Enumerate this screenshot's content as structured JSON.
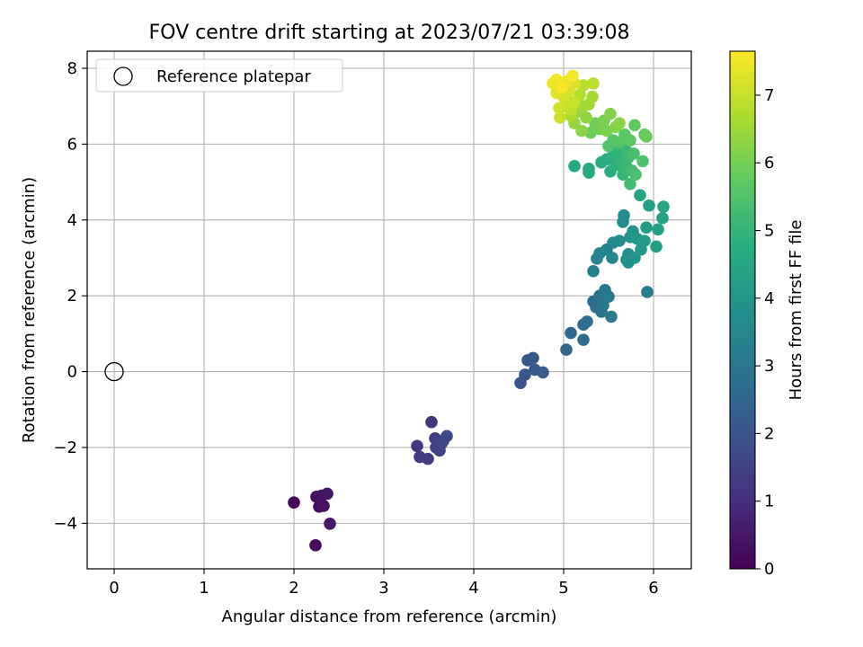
{
  "chart_data": {
    "type": "scatter",
    "title": "FOV centre drift starting at 2023/07/21 03:39:08",
    "xlabel": "Angular distance from reference (arcmin)",
    "ylabel": "Rotation from reference (arcmin)",
    "xlim": [
      -0.3,
      6.42
    ],
    "ylim": [
      -5.2,
      8.45
    ],
    "xticks": [
      0,
      1,
      2,
      3,
      4,
      5,
      6
    ],
    "yticks": [
      -4,
      -2,
      0,
      2,
      4,
      6,
      8
    ],
    "xticklabels": [
      "0",
      "1",
      "2",
      "3",
      "4",
      "5",
      "6"
    ],
    "yticklabels": [
      "−4",
      "−2",
      "0",
      "2",
      "4",
      "6",
      "8"
    ],
    "grid": true,
    "legend": {
      "placement": "upper-left",
      "entries": [
        {
          "label": "Reference platepar",
          "marker": "open-circle"
        }
      ]
    },
    "reference_point": {
      "x": 0,
      "y": 0
    },
    "colormap": "viridis",
    "colorbar": {
      "label": "Hours from first FF file",
      "range": [
        0,
        7.65
      ],
      "ticks": [
        0,
        1,
        2,
        3,
        4,
        5,
        6,
        7
      ],
      "ticklabels": [
        "0",
        "1",
        "2",
        "3",
        "4",
        "5",
        "6",
        "7"
      ]
    },
    "points": [
      {
        "x": 2.0,
        "y": -3.45,
        "c": 0.1
      },
      {
        "x": 2.24,
        "y": -4.58,
        "c": 0.2
      },
      {
        "x": 2.25,
        "y": -3.3,
        "c": 0.25
      },
      {
        "x": 2.28,
        "y": -3.56,
        "c": 0.3
      },
      {
        "x": 2.33,
        "y": -3.54,
        "c": 0.35
      },
      {
        "x": 2.31,
        "y": -3.27,
        "c": 0.4
      },
      {
        "x": 2.37,
        "y": -3.22,
        "c": 0.45
      },
      {
        "x": 2.4,
        "y": -4.01,
        "c": 0.5
      },
      {
        "x": 3.53,
        "y": -1.33,
        "c": 1.2
      },
      {
        "x": 3.37,
        "y": -1.96,
        "c": 1.25
      },
      {
        "x": 3.4,
        "y": -2.25,
        "c": 1.3
      },
      {
        "x": 3.49,
        "y": -2.3,
        "c": 1.35
      },
      {
        "x": 3.57,
        "y": -1.76,
        "c": 1.4
      },
      {
        "x": 3.58,
        "y": -2.0,
        "c": 1.45
      },
      {
        "x": 3.62,
        "y": -2.08,
        "c": 1.5
      },
      {
        "x": 3.64,
        "y": -1.9,
        "c": 1.55
      },
      {
        "x": 3.66,
        "y": -1.83,
        "c": 1.6
      },
      {
        "x": 3.7,
        "y": -1.7,
        "c": 1.62
      },
      {
        "x": 4.52,
        "y": -0.3,
        "c": 2.0
      },
      {
        "x": 4.57,
        "y": -0.08,
        "c": 2.05
      },
      {
        "x": 4.6,
        "y": 0.3,
        "c": 2.1
      },
      {
        "x": 4.66,
        "y": 0.36,
        "c": 2.15
      },
      {
        "x": 4.68,
        "y": 0.05,
        "c": 2.2
      },
      {
        "x": 4.77,
        "y": -0.02,
        "c": 2.25
      },
      {
        "x": 5.03,
        "y": 0.58,
        "c": 2.55
      },
      {
        "x": 5.08,
        "y": 1.02,
        "c": 2.6
      },
      {
        "x": 5.22,
        "y": 0.84,
        "c": 2.65
      },
      {
        "x": 5.22,
        "y": 1.24,
        "c": 2.7
      },
      {
        "x": 5.26,
        "y": 1.32,
        "c": 2.75
      },
      {
        "x": 5.33,
        "y": 1.85,
        "c": 2.8
      },
      {
        "x": 5.36,
        "y": 1.7,
        "c": 2.85
      },
      {
        "x": 5.4,
        "y": 2.0,
        "c": 2.9
      },
      {
        "x": 5.42,
        "y": 1.58,
        "c": 2.95
      },
      {
        "x": 5.44,
        "y": 1.75,
        "c": 3.0
      },
      {
        "x": 5.46,
        "y": 2.15,
        "c": 3.05
      },
      {
        "x": 5.5,
        "y": 1.98,
        "c": 3.1
      },
      {
        "x": 5.53,
        "y": 1.45,
        "c": 3.15
      },
      {
        "x": 5.93,
        "y": 2.1,
        "c": 3.2
      },
      {
        "x": 5.33,
        "y": 2.65,
        "c": 3.3
      },
      {
        "x": 5.37,
        "y": 2.98,
        "c": 3.35
      },
      {
        "x": 5.4,
        "y": 3.12,
        "c": 3.4
      },
      {
        "x": 5.48,
        "y": 3.22,
        "c": 3.45
      },
      {
        "x": 5.54,
        "y": 3.0,
        "c": 3.5
      },
      {
        "x": 5.55,
        "y": 3.4,
        "c": 3.55
      },
      {
        "x": 5.62,
        "y": 3.45,
        "c": 3.6
      },
      {
        "x": 5.66,
        "y": 3.95,
        "c": 3.65
      },
      {
        "x": 5.67,
        "y": 4.12,
        "c": 3.7
      },
      {
        "x": 5.7,
        "y": 2.95,
        "c": 3.75
      },
      {
        "x": 5.72,
        "y": 3.1,
        "c": 3.8
      },
      {
        "x": 5.72,
        "y": 2.88,
        "c": 3.85
      },
      {
        "x": 5.74,
        "y": 3.55,
        "c": 3.9
      },
      {
        "x": 5.77,
        "y": 3.7,
        "c": 3.95
      },
      {
        "x": 5.79,
        "y": 3.0,
        "c": 4.0
      },
      {
        "x": 5.82,
        "y": 3.5,
        "c": 4.05
      },
      {
        "x": 5.86,
        "y": 3.22,
        "c": 4.1
      },
      {
        "x": 5.9,
        "y": 3.45,
        "c": 4.15
      },
      {
        "x": 5.92,
        "y": 3.8,
        "c": 4.2
      },
      {
        "x": 5.95,
        "y": 4.38,
        "c": 4.25
      },
      {
        "x": 6.03,
        "y": 3.3,
        "c": 4.3
      },
      {
        "x": 6.05,
        "y": 3.75,
        "c": 4.35
      },
      {
        "x": 6.1,
        "y": 4.05,
        "c": 4.4
      },
      {
        "x": 6.11,
        "y": 4.35,
        "c": 4.45
      },
      {
        "x": 5.85,
        "y": 4.65,
        "c": 4.5
      },
      {
        "x": 5.12,
        "y": 5.42,
        "c": 4.55
      },
      {
        "x": 5.28,
        "y": 5.25,
        "c": 4.6
      },
      {
        "x": 5.28,
        "y": 5.35,
        "c": 4.65
      },
      {
        "x": 5.42,
        "y": 5.52,
        "c": 4.7
      },
      {
        "x": 5.48,
        "y": 5.6,
        "c": 4.75
      },
      {
        "x": 5.52,
        "y": 5.28,
        "c": 4.8
      },
      {
        "x": 5.55,
        "y": 5.7,
        "c": 4.85
      },
      {
        "x": 5.58,
        "y": 5.45,
        "c": 4.9
      },
      {
        "x": 5.6,
        "y": 5.8,
        "c": 4.95
      },
      {
        "x": 5.63,
        "y": 5.55,
        "c": 5.0
      },
      {
        "x": 5.66,
        "y": 5.2,
        "c": 5.05
      },
      {
        "x": 5.68,
        "y": 5.9,
        "c": 5.1
      },
      {
        "x": 5.7,
        "y": 5.4,
        "c": 5.15
      },
      {
        "x": 5.72,
        "y": 5.65,
        "c": 5.2
      },
      {
        "x": 5.74,
        "y": 4.95,
        "c": 5.25
      },
      {
        "x": 5.76,
        "y": 5.3,
        "c": 5.3
      },
      {
        "x": 5.78,
        "y": 5.75,
        "c": 5.35
      },
      {
        "x": 5.8,
        "y": 5.2,
        "c": 5.4
      },
      {
        "x": 5.88,
        "y": 5.55,
        "c": 5.45
      },
      {
        "x": 5.5,
        "y": 5.95,
        "c": 5.5
      },
      {
        "x": 5.55,
        "y": 6.1,
        "c": 5.55
      },
      {
        "x": 5.62,
        "y": 6.05,
        "c": 5.6
      },
      {
        "x": 5.68,
        "y": 6.25,
        "c": 5.65
      },
      {
        "x": 5.74,
        "y": 6.1,
        "c": 5.7
      },
      {
        "x": 5.79,
        "y": 6.5,
        "c": 5.75
      },
      {
        "x": 5.9,
        "y": 6.25,
        "c": 5.8
      },
      {
        "x": 5.92,
        "y": 6.2,
        "c": 5.85
      },
      {
        "x": 5.3,
        "y": 6.3,
        "c": 5.9
      },
      {
        "x": 5.35,
        "y": 6.55,
        "c": 5.95
      },
      {
        "x": 5.4,
        "y": 6.4,
        "c": 6.0
      },
      {
        "x": 5.45,
        "y": 6.62,
        "c": 6.05
      },
      {
        "x": 5.48,
        "y": 6.35,
        "c": 6.1
      },
      {
        "x": 5.52,
        "y": 6.8,
        "c": 6.15
      },
      {
        "x": 5.58,
        "y": 6.45,
        "c": 6.2
      },
      {
        "x": 5.62,
        "y": 6.55,
        "c": 6.25
      },
      {
        "x": 5.2,
        "y": 6.35,
        "c": 6.3
      },
      {
        "x": 5.25,
        "y": 6.7,
        "c": 6.35
      },
      {
        "x": 5.12,
        "y": 6.55,
        "c": 6.4
      },
      {
        "x": 5.15,
        "y": 6.85,
        "c": 6.45
      },
      {
        "x": 5.22,
        "y": 7.0,
        "c": 6.5
      },
      {
        "x": 5.28,
        "y": 7.05,
        "c": 6.55
      },
      {
        "x": 5.32,
        "y": 7.25,
        "c": 6.6
      },
      {
        "x": 5.08,
        "y": 6.75,
        "c": 6.65
      },
      {
        "x": 5.05,
        "y": 7.15,
        "c": 6.7
      },
      {
        "x": 5.18,
        "y": 7.3,
        "c": 6.75
      },
      {
        "x": 5.22,
        "y": 7.55,
        "c": 6.8
      },
      {
        "x": 5.33,
        "y": 7.6,
        "c": 6.85
      },
      {
        "x": 5.08,
        "y": 6.9,
        "c": 6.9
      },
      {
        "x": 5.02,
        "y": 7.0,
        "c": 6.95
      },
      {
        "x": 5.12,
        "y": 7.1,
        "c": 7.0
      },
      {
        "x": 4.96,
        "y": 6.7,
        "c": 7.05
      },
      {
        "x": 4.95,
        "y": 6.95,
        "c": 7.1
      },
      {
        "x": 5.0,
        "y": 7.25,
        "c": 7.15
      },
      {
        "x": 5.06,
        "y": 7.4,
        "c": 7.2
      },
      {
        "x": 5.12,
        "y": 7.6,
        "c": 7.25
      },
      {
        "x": 4.92,
        "y": 7.35,
        "c": 7.3
      },
      {
        "x": 4.98,
        "y": 7.55,
        "c": 7.35
      },
      {
        "x": 5.02,
        "y": 7.65,
        "c": 7.4
      },
      {
        "x": 4.88,
        "y": 7.6,
        "c": 7.45
      },
      {
        "x": 4.92,
        "y": 7.7,
        "c": 7.5
      },
      {
        "x": 5.1,
        "y": 7.8,
        "c": 7.55
      },
      {
        "x": 4.98,
        "y": 7.5,
        "c": 7.6
      }
    ]
  }
}
